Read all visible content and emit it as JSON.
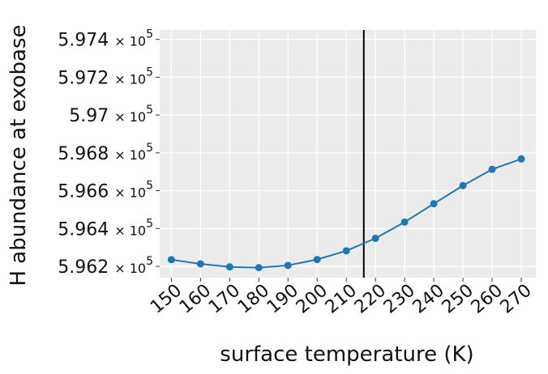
{
  "chart_data": {
    "type": "line",
    "title": "",
    "xlabel": "surface temperature (K)",
    "ylabel": "H abundance at exobase",
    "x": [
      150,
      160,
      170,
      180,
      190,
      200,
      210,
      220,
      230,
      240,
      250,
      260,
      270
    ],
    "x_tick_labels": [
      "150",
      "160",
      "170",
      "180",
      "190",
      "200",
      "210",
      "220",
      "230",
      "240",
      "250",
      "260",
      "270"
    ],
    "series": [
      {
        "values": [
          596235,
          596213,
          596197,
          596193,
          596205,
          596236,
          596282,
          596348,
          596434,
          596531,
          596627,
          596713,
          596768
        ]
      }
    ],
    "y_ticks": [
      596200,
      596400,
      596600,
      596800,
      597000,
      597200,
      597400
    ],
    "y_tick_mantissas": [
      "5.962",
      "5.964",
      "5.966",
      "5.968",
      "5.97",
      "5.972",
      "5.974"
    ],
    "y_tick_multiplier": "× 10",
    "y_tick_exponent": "5",
    "xlim": [
      146,
      275
    ],
    "ylim": [
      596140,
      597450
    ],
    "vertical_line_x": 216,
    "grid": true,
    "colors": {
      "line": "#1f77b4",
      "background": "#ebebeb",
      "grid": "#ffffff",
      "vline": "#000000"
    }
  }
}
